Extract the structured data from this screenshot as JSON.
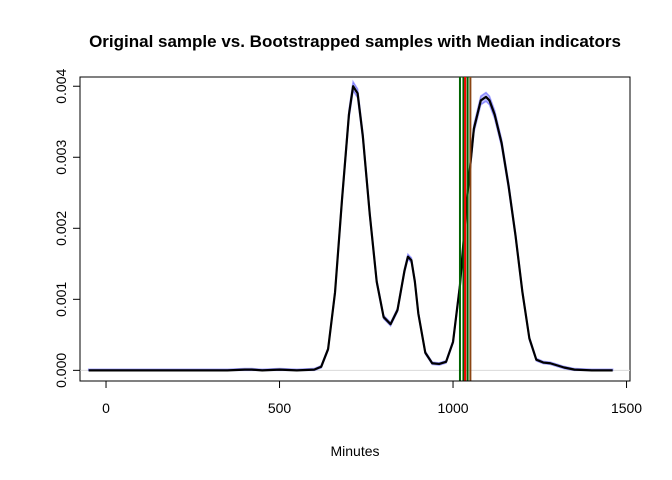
{
  "chart_data": {
    "type": "line",
    "title": "Original sample vs. Bootstrapped samples with Median indicators",
    "xlabel": "Minutes",
    "ylabel": "",
    "xlim": [
      -75,
      1510
    ],
    "ylim": [
      -0.00015,
      0.00413
    ],
    "x_ticks": [
      0,
      500,
      1000,
      1500
    ],
    "x_tick_labels": [
      "0",
      "500",
      "1000",
      "1500"
    ],
    "y_ticks": [
      0.0,
      0.001,
      0.002,
      0.003,
      0.004
    ],
    "y_tick_labels": [
      "0.000",
      "0.001",
      "0.002",
      "0.003",
      "0.004"
    ],
    "reference_line_y": 0.0,
    "density_curve": {
      "x": [
        -50,
        0,
        100,
        200,
        300,
        350,
        400,
        420,
        450,
        500,
        550,
        600,
        620,
        640,
        660,
        680,
        700,
        712,
        725,
        740,
        760,
        780,
        800,
        820,
        840,
        860,
        870,
        880,
        890,
        900,
        920,
        940,
        960,
        980,
        1000,
        1020,
        1040,
        1060,
        1080,
        1095,
        1105,
        1120,
        1140,
        1160,
        1180,
        1200,
        1220,
        1240,
        1260,
        1280,
        1300,
        1320,
        1350,
        1400,
        1460
      ],
      "y": [
        0.0,
        0.0,
        0.0,
        0.0,
        0.0,
        0.0,
        1e-05,
        1e-05,
        0.0,
        1e-05,
        0.0,
        1e-05,
        5e-05,
        0.0003,
        0.0011,
        0.0024,
        0.0036,
        0.004,
        0.0039,
        0.0033,
        0.0022,
        0.00125,
        0.00075,
        0.00065,
        0.00085,
        0.0014,
        0.0016,
        0.00155,
        0.00125,
        0.0008,
        0.00025,
        0.0001,
        9e-05,
        0.00012,
        0.0004,
        0.0012,
        0.0024,
        0.0034,
        0.0038,
        0.00385,
        0.0038,
        0.0036,
        0.0032,
        0.0026,
        0.0019,
        0.0011,
        0.00045,
        0.00015,
        0.00011,
        0.0001,
        7e-05,
        4e-05,
        1e-05,
        0.0,
        0.0
      ]
    },
    "median_lines": [
      {
        "x": 1020,
        "color": "#006400"
      },
      {
        "x": 1030,
        "color": "#006400"
      },
      {
        "x": 1035,
        "color": "#ff0000"
      },
      {
        "x": 1042,
        "color": "#006400"
      },
      {
        "x": 1050,
        "color": "#8b4513"
      }
    ],
    "curve_color": "#000000",
    "bootstrap_color": "#0000ff"
  }
}
